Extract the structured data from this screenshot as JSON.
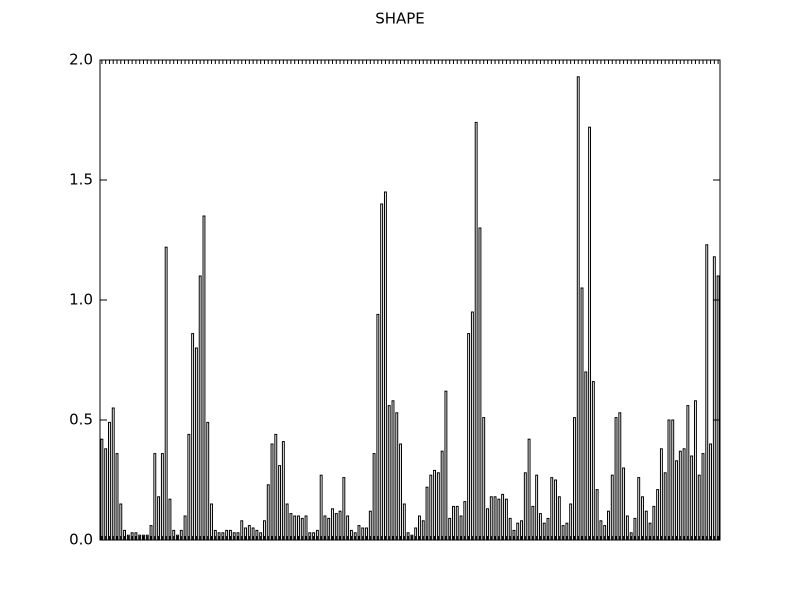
{
  "chart_data": {
    "type": "bar",
    "title": "SHAPE",
    "values": [
      0.42,
      0.38,
      0.49,
      0.55,
      0.36,
      0.15,
      0.04,
      0.02,
      0.03,
      0.03,
      0.02,
      0.02,
      0.02,
      0.06,
      0.36,
      0.18,
      0.36,
      1.22,
      0.17,
      0.04,
      0.02,
      0.04,
      0.1,
      0.44,
      0.86,
      0.8,
      1.1,
      1.35,
      0.49,
      0.15,
      0.04,
      0.03,
      0.03,
      0.04,
      0.04,
      0.03,
      0.03,
      0.08,
      0.05,
      0.06,
      0.05,
      0.04,
      0.03,
      0.08,
      0.23,
      0.4,
      0.44,
      0.31,
      0.41,
      0.15,
      0.11,
      0.1,
      0.1,
      0.09,
      0.1,
      0.03,
      0.03,
      0.04,
      0.27,
      0.1,
      0.09,
      0.13,
      0.11,
      0.12,
      0.26,
      0.1,
      0.04,
      0.03,
      0.06,
      0.05,
      0.05,
      0.12,
      0.36,
      0.94,
      1.4,
      1.45,
      0.56,
      0.58,
      0.53,
      0.4,
      0.15,
      0.03,
      0.02,
      0.05,
      0.1,
      0.08,
      0.22,
      0.27,
      0.29,
      0.28,
      0.37,
      0.62,
      0.09,
      0.14,
      0.14,
      0.1,
      0.16,
      0.86,
      0.95,
      1.74,
      1.3,
      0.51,
      0.13,
      0.18,
      0.18,
      0.17,
      0.19,
      0.17,
      0.09,
      0.04,
      0.07,
      0.08,
      0.28,
      0.42,
      0.14,
      0.27,
      0.11,
      0.07,
      0.09,
      0.26,
      0.25,
      0.18,
      0.06,
      0.07,
      0.15,
      0.51,
      1.93,
      1.05,
      0.7,
      1.72,
      0.66,
      0.21,
      0.08,
      0.06,
      0.12,
      0.27,
      0.51,
      0.53,
      0.3,
      0.1,
      0.03,
      0.09,
      0.26,
      0.18,
      0.12,
      0.07,
      0.14,
      0.21,
      0.38,
      0.28,
      0.5,
      0.5,
      0.33,
      0.37,
      0.38,
      0.56,
      0.35,
      0.58,
      0.27,
      0.36,
      1.23,
      0.4,
      1.18,
      1.1
    ],
    "color": "#ffffff",
    "ylim": [
      0,
      2.0
    ],
    "yticks": [
      {
        "value": 0,
        "label": "0.0"
      },
      {
        "value": 0.5,
        "label": "0.5"
      },
      {
        "value": 1.0,
        "label": "1.0"
      },
      {
        "value": 1.5,
        "label": "1.5"
      },
      {
        "value": 2.0,
        "label": "2.0"
      }
    ]
  }
}
